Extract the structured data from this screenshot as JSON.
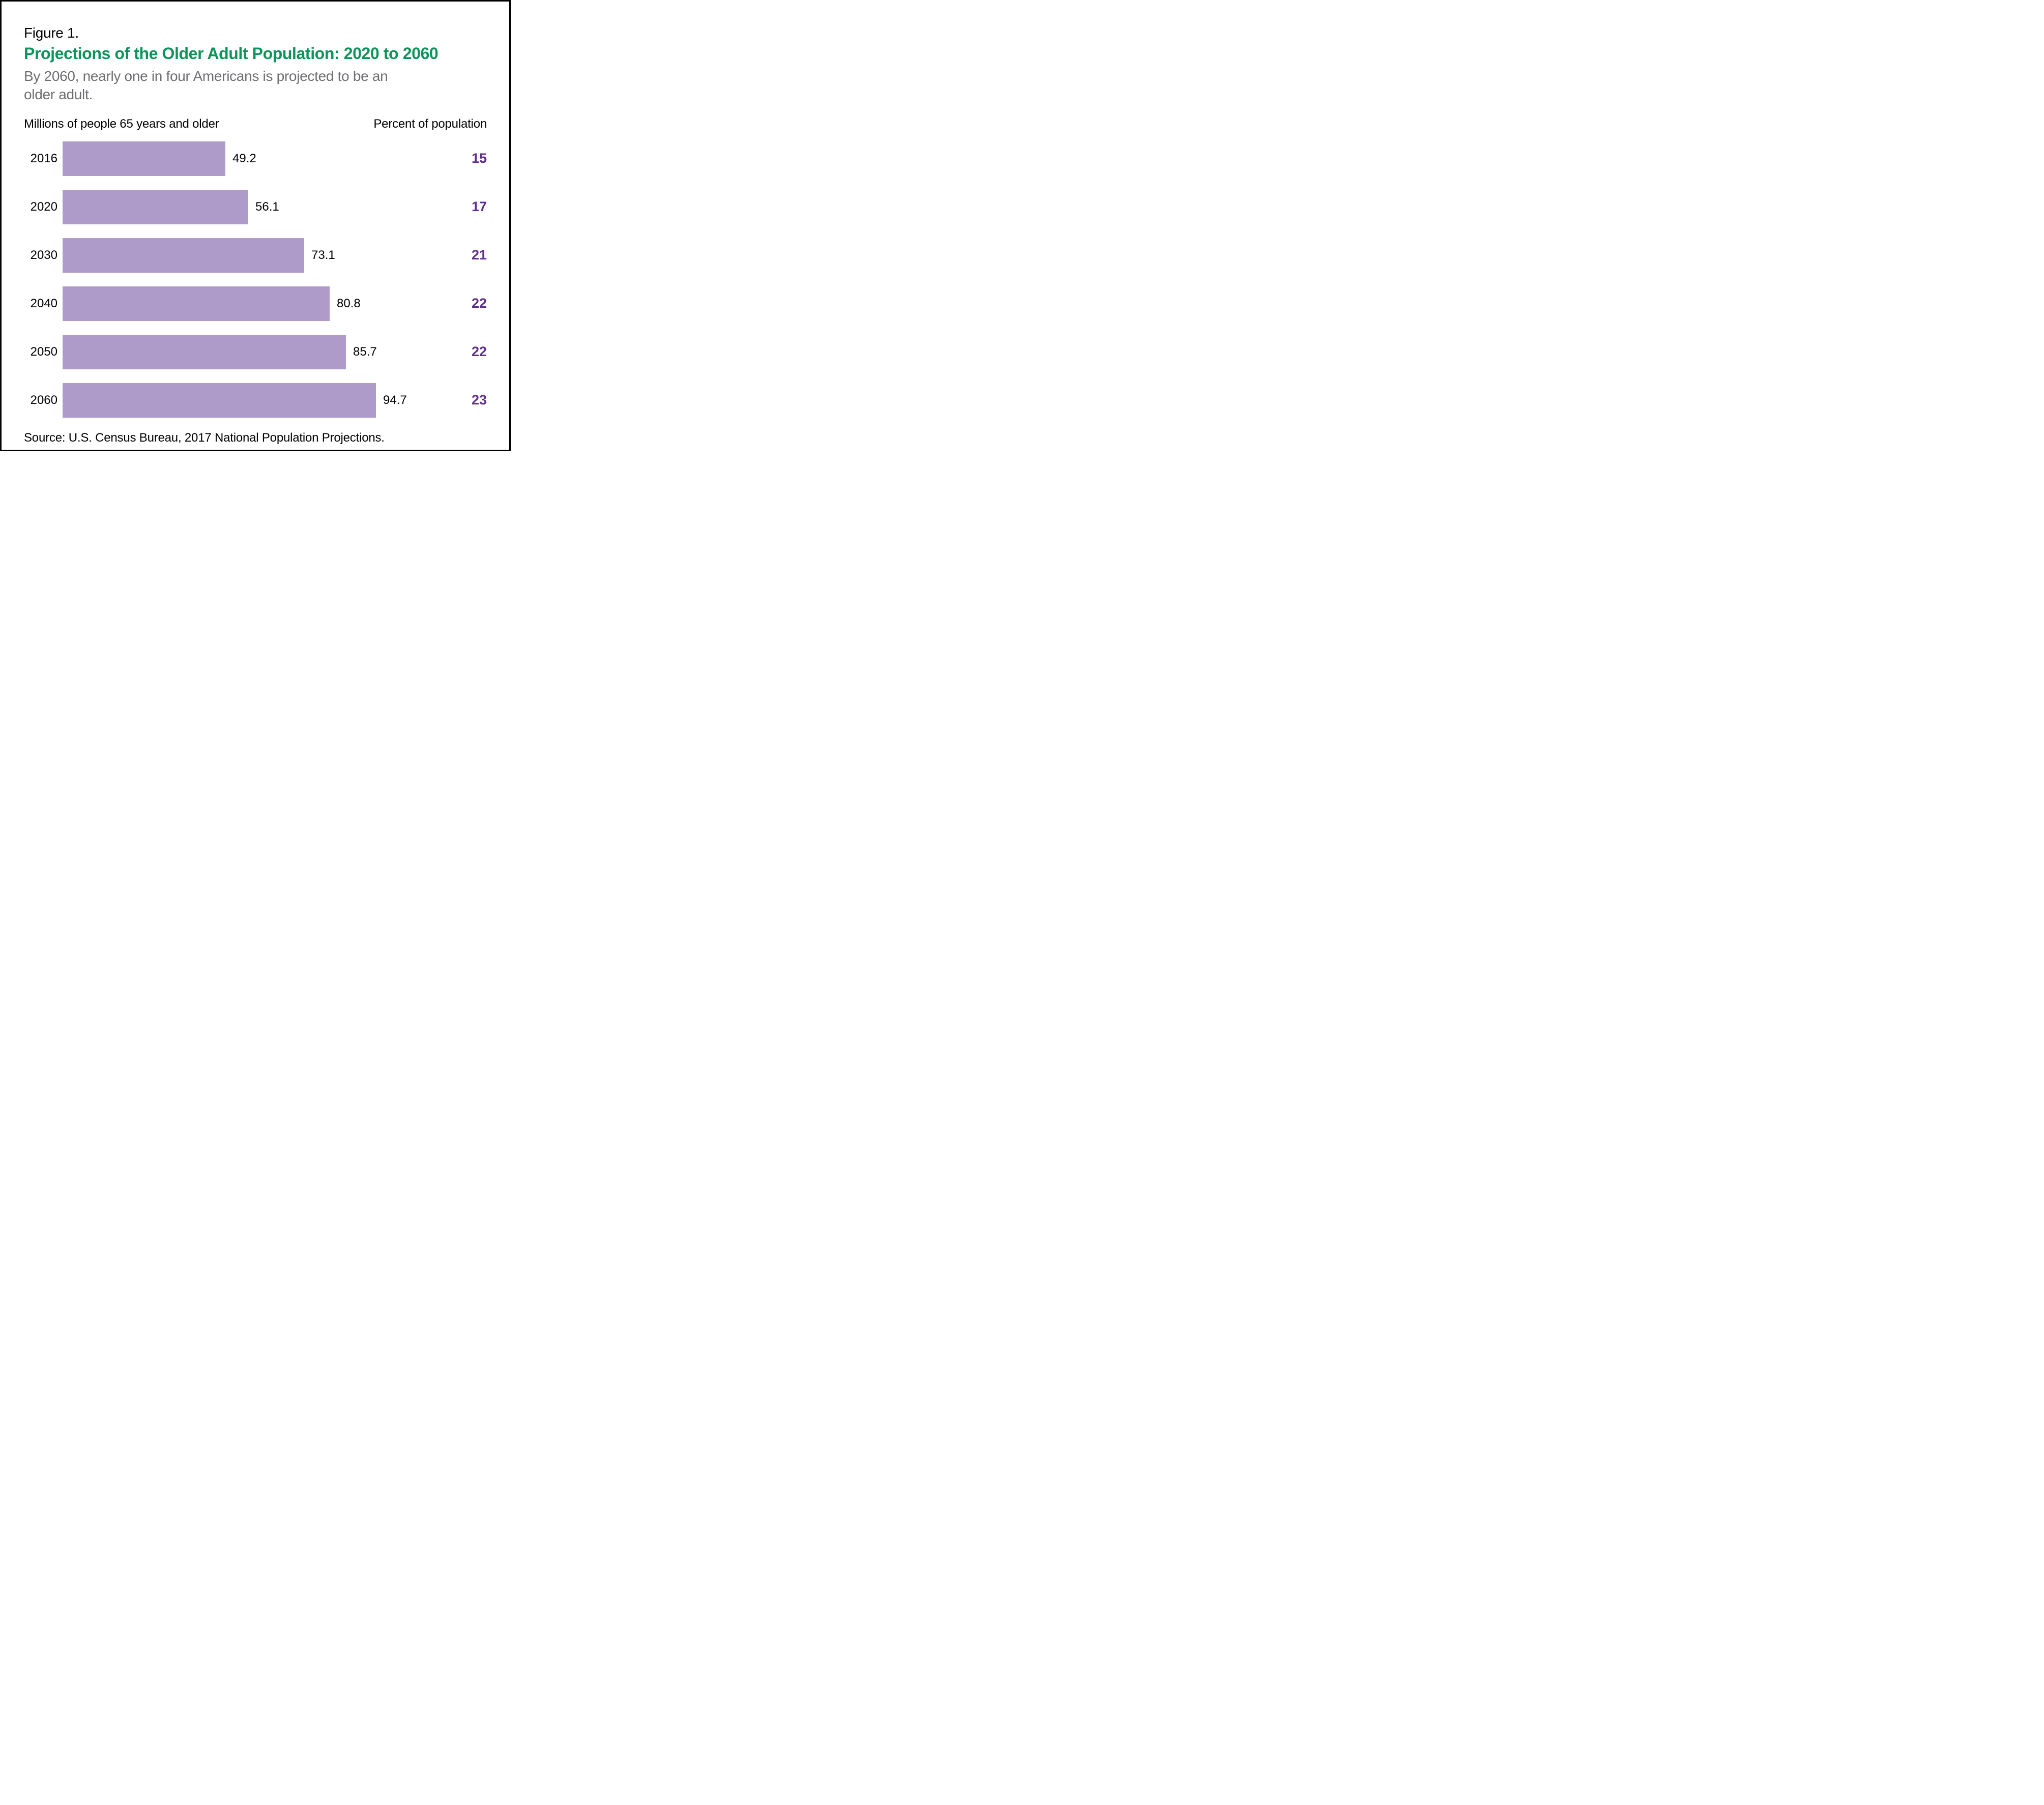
{
  "figure": {
    "label": "Figure 1.",
    "title": "Projections of the Older Adult Population: 2020 to 2060",
    "subtitle": "By 2060, nearly one in four Americans is projected to be an older adult.",
    "source": "Source: U.S. Census Bureau, 2017 National Population Projections."
  },
  "headers": {
    "left": "Millions of people 65 years and older",
    "right": "Percent of population"
  },
  "colors": {
    "title_green": "#0b9459",
    "bar_purple": "#af9bca",
    "percent_purple": "#5f2e8e",
    "subtitle_gray": "#6d6e71",
    "frame_black": "#000000"
  },
  "chart_data": {
    "type": "bar",
    "orientation": "horizontal",
    "title": "Projections of the Older Adult Population: 2020 to 2060",
    "subtitle": "By 2060, nearly one in four Americans is projected to be an older adult.",
    "categories": [
      "2016",
      "2020",
      "2030",
      "2040",
      "2050",
      "2060"
    ],
    "series": [
      {
        "name": "Millions of people 65 years and older",
        "values": [
          49.2,
          56.1,
          73.1,
          80.8,
          85.7,
          94.7
        ]
      },
      {
        "name": "Percent of population",
        "values": [
          15,
          17,
          21,
          22,
          22,
          23
        ]
      }
    ],
    "value_labels_shown": true,
    "gridlines": false,
    "axes_shown": false,
    "xlim": [
      0,
      100
    ],
    "legend_position": "none"
  }
}
